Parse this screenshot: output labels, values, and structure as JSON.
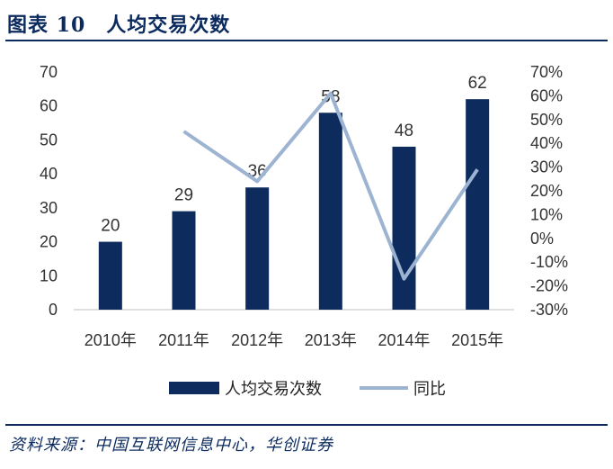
{
  "header": {
    "title": "图表 10　人均交易次数"
  },
  "footer": {
    "source": "资料来源：中国互联网信息中心，华创证券"
  },
  "colors": {
    "bar": "#0d2b5c",
    "line": "#9db3d2",
    "rule": "#0b2a5e"
  },
  "chart_data": {
    "type": "bar+line",
    "categories": [
      "2010年",
      "2011年",
      "2012年",
      "2013年",
      "2014年",
      "2015年"
    ],
    "series": [
      {
        "name": "人均交易次数",
        "type": "bar",
        "axis": "left",
        "values": [
          20,
          29,
          36,
          58,
          48,
          62
        ]
      },
      {
        "name": "同比",
        "type": "line",
        "axis": "right",
        "values": [
          null,
          45,
          24,
          61,
          -17,
          29
        ]
      }
    ],
    "data_labels": [
      "20",
      "29",
      "36",
      "58",
      "48",
      "62"
    ],
    "y_left": {
      "ylim": [
        0,
        70
      ],
      "ticks": [
        "0",
        "10",
        "20",
        "30",
        "40",
        "50",
        "60",
        "70"
      ]
    },
    "y_right": {
      "ylim": [
        -30,
        70
      ],
      "ticks": [
        "-30%",
        "-20%",
        "-10%",
        "0%",
        "10%",
        "20%",
        "30%",
        "40%",
        "50%",
        "60%",
        "70%"
      ]
    },
    "legend": {
      "position": "bottom",
      "items": [
        "人均交易次数",
        "同比"
      ]
    },
    "grid": false
  }
}
